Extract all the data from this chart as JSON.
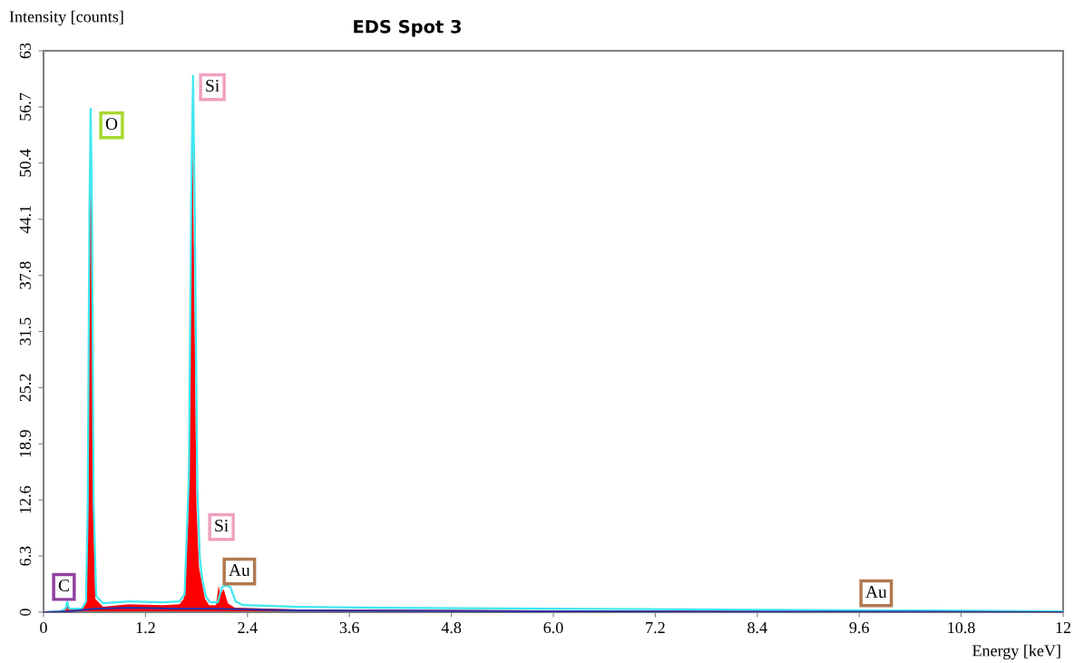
{
  "chart_data": {
    "type": "area",
    "title": "EDS Spot 3",
    "xlabel": "Energy [keV]",
    "ylabel": "Intensity [counts]",
    "series": [
      {
        "color": "#ff0000",
        "x": [
          0,
          0.2,
          0.26,
          0.28,
          0.3,
          0.45,
          0.5,
          0.52,
          0.54,
          0.555,
          0.57,
          0.59,
          0.61,
          0.7,
          1.0,
          1.4,
          1.6,
          1.65,
          1.7,
          1.73,
          1.75,
          1.77,
          1.8,
          1.83,
          1.86,
          1.9,
          1.95,
          2.03,
          2.06,
          2.08,
          2.12,
          2.17,
          2.25,
          3.0,
          12
        ],
        "values": [
          0,
          0,
          0.3,
          1.0,
          0.3,
          0.3,
          1.0,
          10,
          40,
          55,
          40,
          10,
          1.5,
          0.6,
          0.9,
          0.8,
          0.9,
          1.5,
          10,
          40,
          57.8,
          40,
          12,
          5,
          3.5,
          1.5,
          0.8,
          0.8,
          3.0,
          2.0,
          2.6,
          1.0,
          0.5,
          0.3,
          0
        ]
      },
      {
        "type": "line",
        "color": "#40e8f0",
        "x": [
          0,
          0.2,
          0.26,
          0.28,
          0.3,
          0.45,
          0.5,
          0.52,
          0.54,
          0.555,
          0.57,
          0.59,
          0.62,
          0.7,
          1.0,
          1.4,
          1.6,
          1.66,
          1.71,
          1.74,
          1.76,
          1.78,
          1.81,
          1.84,
          1.87,
          1.91,
          1.96,
          2.05,
          2.1,
          2.15,
          2.2,
          2.26,
          2.35,
          3.0,
          4.0,
          6.0,
          8.0,
          10.0,
          12
        ],
        "values": [
          0,
          0.1,
          0.4,
          1.2,
          0.4,
          0.4,
          1.2,
          12,
          45,
          56.5,
          45,
          12,
          1.8,
          1.0,
          1.2,
          1.1,
          1.2,
          2.0,
          15,
          48,
          60.2,
          45,
          14,
          6,
          3.6,
          1.8,
          1.1,
          1.1,
          2.8,
          3.0,
          2.8,
          1.2,
          0.8,
          0.6,
          0.5,
          0.4,
          0.3,
          0.2,
          0.1
        ]
      },
      {
        "type": "line",
        "color": "#3030a0",
        "x": [
          0,
          0.3,
          0.6,
          1.0,
          1.6,
          2.0,
          2.5,
          3.0,
          6.0,
          12
        ],
        "values": [
          0,
          0.1,
          0.4,
          0.5,
          0.4,
          0.4,
          0.3,
          0.2,
          0.1,
          0
        ]
      }
    ],
    "xlim": [
      0,
      12
    ],
    "ylim": [
      0,
      63
    ],
    "xticks": [
      0,
      1.2,
      2.4,
      3.6,
      4.8,
      {
        "value": 6,
        "label": "6.0"
      },
      7.2,
      8.4,
      9.6,
      10.8,
      12
    ],
    "yticks": [
      0,
      6.3,
      12.6,
      18.9,
      25.2,
      31.5,
      37.8,
      44.1,
      50.4,
      56.7,
      63
    ],
    "annotations": [
      "C",
      "O",
      "Si",
      "Si",
      "Au",
      "Au"
    ],
    "grid": false,
    "legend": false
  }
}
